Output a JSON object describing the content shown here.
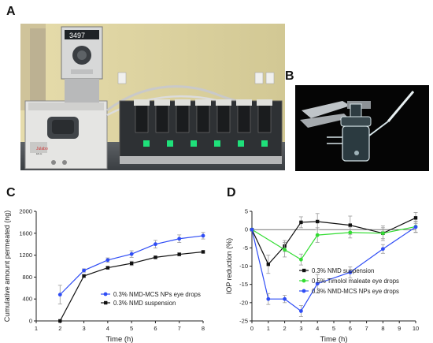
{
  "panels": {
    "a": "A",
    "b": "B",
    "c": "C",
    "d": "D"
  },
  "photo_a": {
    "display_reading": "3497",
    "brand_label": "Julabo",
    "model_label": "ED-H"
  },
  "chart_data": [
    {
      "type": "line",
      "panel": "C",
      "xlabel": "Time (h)",
      "ylabel": "Cumulative amount permeated (ng)",
      "xlim": [
        1,
        8
      ],
      "ylim": [
        0,
        2000
      ],
      "xticks": [
        "1",
        "2",
        "3",
        "4",
        "5",
        "6",
        "7",
        "8"
      ],
      "yticks": [
        "0",
        "400",
        "800",
        "1200",
        "1600",
        "2000"
      ],
      "legend_position": "lower-right",
      "grid": false,
      "series": [
        {
          "name": "0.3% NMD-MCS NPs eye drops",
          "color": "#2f4df5",
          "marker": "circle",
          "x": [
            2,
            3,
            4,
            5,
            6,
            7,
            8
          ],
          "y": [
            480,
            920,
            1110,
            1220,
            1400,
            1500,
            1555
          ],
          "err": [
            170,
            30,
            40,
            60,
            70,
            70,
            60
          ]
        },
        {
          "name": "0.3% NMD suspension",
          "color": "#111111",
          "marker": "square",
          "x": [
            2,
            3,
            4,
            5,
            6,
            7,
            8
          ],
          "y": [
            0,
            820,
            970,
            1050,
            1160,
            1215,
            1260
          ],
          "err": [
            0,
            25,
            20,
            40,
            20,
            25,
            20
          ]
        }
      ]
    },
    {
      "type": "line",
      "panel": "D",
      "xlabel": "Time (h)",
      "ylabel": "IOP reduction (%)",
      "xlim": [
        0,
        10
      ],
      "ylim": [
        -25,
        5
      ],
      "xticks": [
        "0",
        "1",
        "2",
        "3",
        "4",
        "5",
        "6",
        "7",
        "8",
        "9",
        "10"
      ],
      "yticks": [
        "5",
        "0",
        "-5",
        "-10",
        "-15",
        "-20",
        "-25"
      ],
      "legend_position": "lower-right",
      "grid": false,
      "series": [
        {
          "name": "0.3% NMD suspension",
          "color": "#111111",
          "marker": "square",
          "x": [
            0,
            1,
            2,
            3,
            4,
            6,
            8,
            10
          ],
          "y": [
            0,
            -9.5,
            -4.5,
            2,
            2.2,
            1.2,
            -1,
            3.2
          ],
          "err": [
            0,
            2.5,
            1.5,
            1.5,
            2.2,
            2.5,
            2,
            1.5
          ]
        },
        {
          "name": "0.5% Timolol maleate eye drops",
          "color": "#33dd33",
          "marker": "circle",
          "x": [
            0,
            2,
            3,
            4,
            6,
            8,
            10
          ],
          "y": [
            0,
            -5.5,
            -8.2,
            -1.5,
            -0.8,
            -1,
            0.8
          ],
          "err": [
            0,
            2,
            1.5,
            2,
            1.5,
            1.5,
            1.5
          ]
        },
        {
          "name": "0.3% NMD-MCS NPs eye drops",
          "color": "#2f4df5",
          "marker": "circle",
          "x": [
            0,
            1,
            2,
            3,
            4,
            6,
            8,
            10
          ],
          "y": [
            0,
            -19,
            -19,
            -22.3,
            -14.8,
            -11.7,
            -5.3,
            0.7
          ],
          "err": [
            0,
            1.5,
            1,
            1.5,
            2.5,
            1.5,
            1.2,
            1.5
          ]
        }
      ]
    }
  ]
}
